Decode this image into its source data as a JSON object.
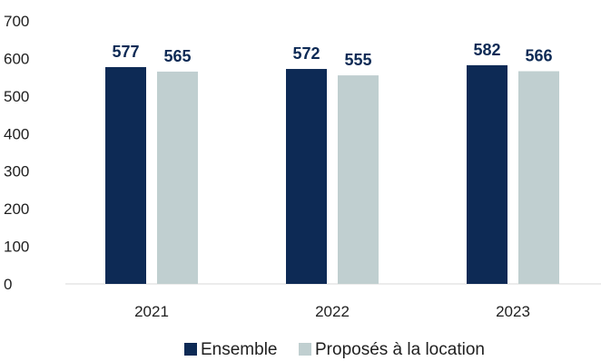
{
  "chart_data": {
    "type": "bar",
    "title": "",
    "xlabel": "",
    "ylabel": "",
    "categories": [
      "2021",
      "2022",
      "2023"
    ],
    "series": [
      {
        "name": "Ensemble",
        "values": [
          577,
          572,
          582
        ],
        "color": "#0d2a55"
      },
      {
        "name": "Proposés à la location",
        "values": [
          565,
          555,
          566
        ],
        "color": "#c0cfd0"
      }
    ],
    "ylim": [
      0,
      700
    ],
    "yticks": [
      "0",
      "100",
      "200",
      "300",
      "400",
      "500",
      "600",
      "700"
    ],
    "grid": false,
    "legend": "bottom"
  }
}
